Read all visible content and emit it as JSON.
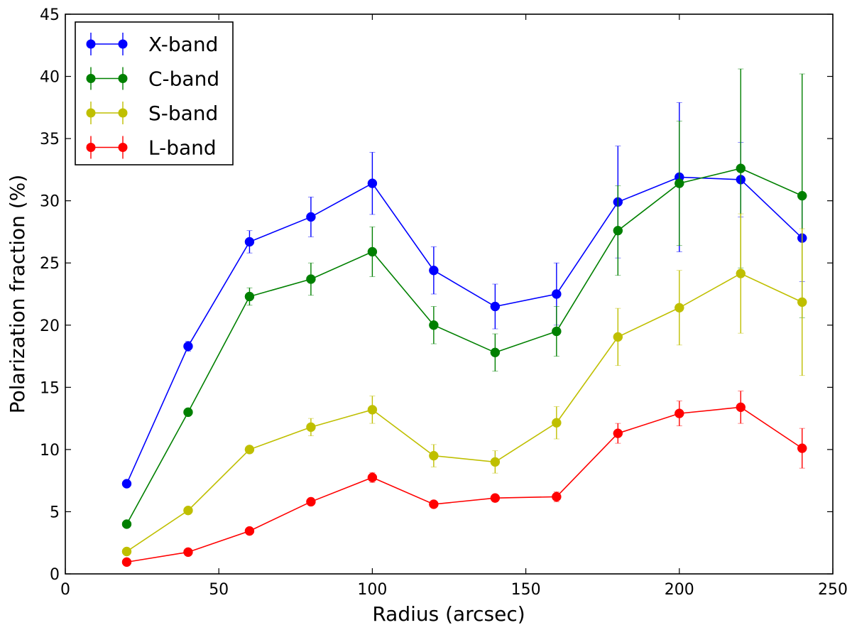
{
  "chart_data": {
    "type": "line",
    "title": "",
    "xlabel": "Radius (arcsec)",
    "ylabel": "Polarization fraction (%)",
    "xlim": [
      0,
      250
    ],
    "ylim": [
      0,
      45
    ],
    "xticks": [
      0,
      50,
      100,
      150,
      200,
      250
    ],
    "yticks": [
      0,
      5,
      10,
      15,
      20,
      25,
      30,
      35,
      40,
      45
    ],
    "grid": false,
    "legend_position": "top-left",
    "x": [
      20,
      40,
      60,
      80,
      100,
      120,
      140,
      160,
      180,
      200,
      220,
      240
    ],
    "series": [
      {
        "name": "X-band",
        "color": "#0000ff",
        "values": [
          7.25,
          18.3,
          26.7,
          28.7,
          31.4,
          24.4,
          21.5,
          22.5,
          29.9,
          31.9,
          31.7,
          27.0
        ],
        "errors": [
          0.2,
          0.4,
          0.9,
          1.6,
          2.5,
          1.9,
          1.8,
          2.5,
          4.5,
          6.0,
          3.0,
          3.5
        ]
      },
      {
        "name": "C-band",
        "color": "#008000",
        "values": [
          4.0,
          13.0,
          22.3,
          23.7,
          25.9,
          20.0,
          17.8,
          19.5,
          27.6,
          31.4,
          32.6,
          30.4
        ],
        "errors": [
          0.2,
          0.3,
          0.7,
          1.3,
          2.0,
          1.5,
          1.5,
          2.0,
          3.6,
          5.0,
          8.0,
          9.8
        ]
      },
      {
        "name": "S-band",
        "color": "#bfbf00",
        "values": [
          1.8,
          5.1,
          10.0,
          11.8,
          13.2,
          9.5,
          9.0,
          12.15,
          19.05,
          21.4,
          24.15,
          21.85
        ],
        "errors": [
          0.1,
          0.2,
          0.3,
          0.7,
          1.1,
          0.9,
          0.9,
          1.3,
          2.3,
          3.0,
          4.8,
          5.9
        ]
      },
      {
        "name": "L-band",
        "color": "#ff0000",
        "values": [
          0.95,
          1.75,
          3.45,
          5.8,
          7.75,
          5.6,
          6.1,
          6.2,
          11.3,
          12.9,
          13.4,
          10.1
        ],
        "errors": [
          0.05,
          0.1,
          0.2,
          0.3,
          0.4,
          0.25,
          0.3,
          0.4,
          0.8,
          1.0,
          1.3,
          1.6
        ]
      }
    ]
  }
}
